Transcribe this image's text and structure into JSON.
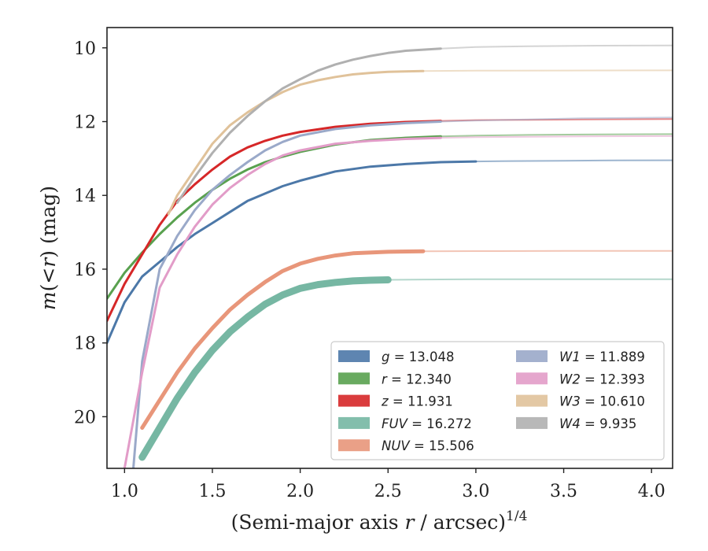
{
  "chart_data": {
    "type": "line",
    "xlabel": "(Semi-major axis r / arcsec)",
    "xlabel_italic_part": "r",
    "xlabel_superscript": "1/4",
    "ylabel": "m(<r) (mag)",
    "xlim": [
      0.9,
      4.12
    ],
    "ylim": [
      21.4,
      9.45
    ],
    "y_inverted": true,
    "x_ticks": [
      1.0,
      1.5,
      2.0,
      2.5,
      3.0,
      3.5,
      4.0
    ],
    "x_tick_labels": [
      "1.0",
      "1.5",
      "2.0",
      "2.5",
      "3.0",
      "3.5",
      "4.0"
    ],
    "y_ticks": [
      10,
      12,
      14,
      16,
      18,
      20
    ],
    "y_tick_labels": [
      "10",
      "12",
      "14",
      "16",
      "18",
      "20"
    ],
    "grid": false,
    "legend_position": "lower-right",
    "legend_columns": 2,
    "series": [
      {
        "name": "g",
        "legend_value": "13.048",
        "color": "#4c78a8",
        "x": [
          0.9,
          1.0,
          1.1,
          1.2,
          1.3,
          1.4,
          1.5,
          1.6,
          1.7,
          1.8,
          1.9,
          2.0,
          2.2,
          2.4,
          2.6,
          2.8,
          3.0,
          3.2,
          3.5,
          3.8,
          4.12
        ],
        "y": [
          18.0,
          16.9,
          16.2,
          15.8,
          15.4,
          15.05,
          14.75,
          14.45,
          14.15,
          13.95,
          13.75,
          13.6,
          13.35,
          13.22,
          13.15,
          13.1,
          13.08,
          13.07,
          13.06,
          13.05,
          13.048
        ]
      },
      {
        "name": "r",
        "legend_value": "12.340",
        "color": "#59a14f",
        "x": [
          0.9,
          1.0,
          1.1,
          1.2,
          1.3,
          1.4,
          1.5,
          1.6,
          1.7,
          1.8,
          1.9,
          2.0,
          2.2,
          2.4,
          2.6,
          2.8,
          3.0,
          3.3,
          3.6,
          4.12
        ],
        "y": [
          16.8,
          16.1,
          15.55,
          15.05,
          14.6,
          14.2,
          13.85,
          13.55,
          13.3,
          13.1,
          12.95,
          12.82,
          12.62,
          12.5,
          12.44,
          12.4,
          12.38,
          12.36,
          12.35,
          12.34
        ]
      },
      {
        "name": "z",
        "legend_value": "11.931",
        "color": "#d62728",
        "x": [
          0.9,
          1.0,
          1.1,
          1.2,
          1.3,
          1.4,
          1.5,
          1.6,
          1.7,
          1.8,
          1.9,
          2.0,
          2.2,
          2.4,
          2.6,
          2.8,
          3.0,
          3.3,
          3.6,
          4.12
        ],
        "y": [
          17.4,
          16.4,
          15.6,
          14.8,
          14.15,
          13.7,
          13.3,
          12.95,
          12.7,
          12.52,
          12.38,
          12.28,
          12.14,
          12.06,
          12.01,
          11.98,
          11.96,
          11.95,
          11.94,
          11.931
        ]
      },
      {
        "name": "FUV",
        "legend_value": "16.272",
        "color": "#76b7a3",
        "x": [
          1.1,
          1.2,
          1.3,
          1.4,
          1.5,
          1.6,
          1.7,
          1.8,
          1.9,
          2.0,
          2.1,
          2.2,
          2.3,
          2.4,
          2.5,
          2.7,
          3.0,
          3.5,
          4.12
        ],
        "y": [
          21.1,
          20.3,
          19.5,
          18.8,
          18.2,
          17.7,
          17.3,
          16.95,
          16.7,
          16.52,
          16.42,
          16.36,
          16.32,
          16.3,
          16.29,
          16.28,
          16.275,
          16.273,
          16.272
        ]
      },
      {
        "name": "NUV",
        "legend_value": "15.506",
        "color": "#e8967a",
        "x": [
          1.1,
          1.2,
          1.3,
          1.4,
          1.5,
          1.6,
          1.7,
          1.8,
          1.9,
          2.0,
          2.1,
          2.2,
          2.3,
          2.5,
          2.7,
          3.0,
          3.5,
          4.12
        ],
        "y": [
          20.3,
          19.55,
          18.8,
          18.15,
          17.6,
          17.1,
          16.7,
          16.35,
          16.05,
          15.85,
          15.72,
          15.63,
          15.57,
          15.53,
          15.515,
          15.51,
          15.507,
          15.506
        ]
      },
      {
        "name": "W1",
        "legend_value": "11.889",
        "color": "#9aa9c9",
        "x": [
          1.05,
          1.1,
          1.2,
          1.3,
          1.4,
          1.5,
          1.6,
          1.7,
          1.8,
          1.9,
          2.0,
          2.2,
          2.4,
          2.6,
          2.8,
          3.0,
          3.3,
          3.6,
          4.12
        ],
        "y": [
          21.4,
          18.5,
          16.0,
          15.1,
          14.4,
          13.85,
          13.45,
          13.1,
          12.78,
          12.55,
          12.38,
          12.2,
          12.1,
          12.04,
          12.0,
          11.97,
          11.94,
          11.91,
          11.889
        ]
      },
      {
        "name": "W2",
        "legend_value": "12.393",
        "color": "#e29cc8",
        "x": [
          1.0,
          1.1,
          1.2,
          1.3,
          1.4,
          1.5,
          1.6,
          1.7,
          1.8,
          1.9,
          2.0,
          2.2,
          2.4,
          2.6,
          2.8,
          3.0,
          3.3,
          3.6,
          4.12
        ],
        "y": [
          21.4,
          18.8,
          16.5,
          15.6,
          14.85,
          14.25,
          13.8,
          13.45,
          13.15,
          12.92,
          12.78,
          12.6,
          12.52,
          12.47,
          12.44,
          12.42,
          12.41,
          12.4,
          12.393
        ]
      },
      {
        "name": "W3",
        "legend_value": "10.610",
        "color": "#e0c29a",
        "x": [
          1.25,
          1.3,
          1.4,
          1.5,
          1.6,
          1.7,
          1.8,
          1.9,
          2.0,
          2.1,
          2.2,
          2.3,
          2.4,
          2.5,
          2.7,
          3.0,
          3.5,
          4.12
        ],
        "y": [
          14.5,
          14.0,
          13.3,
          12.6,
          12.1,
          11.75,
          11.45,
          11.2,
          11.0,
          10.88,
          10.79,
          10.72,
          10.68,
          10.65,
          10.63,
          10.62,
          10.615,
          10.61
        ]
      },
      {
        "name": "W4",
        "legend_value": "9.935",
        "color": "#b0b0b0",
        "x": [
          1.3,
          1.4,
          1.5,
          1.6,
          1.7,
          1.8,
          1.9,
          2.0,
          2.1,
          2.2,
          2.3,
          2.4,
          2.5,
          2.6,
          2.8,
          3.0,
          3.3,
          3.7,
          4.12
        ],
        "y": [
          14.2,
          13.5,
          12.85,
          12.3,
          11.85,
          11.45,
          11.1,
          10.85,
          10.62,
          10.45,
          10.32,
          10.22,
          10.14,
          10.08,
          10.02,
          9.98,
          9.955,
          9.94,
          9.935
        ]
      }
    ],
    "legend": [
      {
        "series": "g",
        "label_italic": "g",
        "label_rest": " = 13.048"
      },
      {
        "series": "r",
        "label_italic": "r",
        "label_rest": " = 12.340"
      },
      {
        "series": "z",
        "label_italic": "z",
        "label_rest": " = 11.931"
      },
      {
        "series": "FUV",
        "label_italic": "FUV",
        "label_rest": " = 16.272"
      },
      {
        "series": "NUV",
        "label_italic": "NUV",
        "label_rest": " = 15.506"
      },
      {
        "series": "W1",
        "label_italic": "W1",
        "label_rest": " = 11.889"
      },
      {
        "series": "W2",
        "label_italic": "W2",
        "label_rest": " = 12.393"
      },
      {
        "series": "W3",
        "label_italic": "W3",
        "label_rest": " = 10.610"
      },
      {
        "series": "W4",
        "label_italic": "W4",
        "label_rest": " = 9.935"
      }
    ]
  }
}
